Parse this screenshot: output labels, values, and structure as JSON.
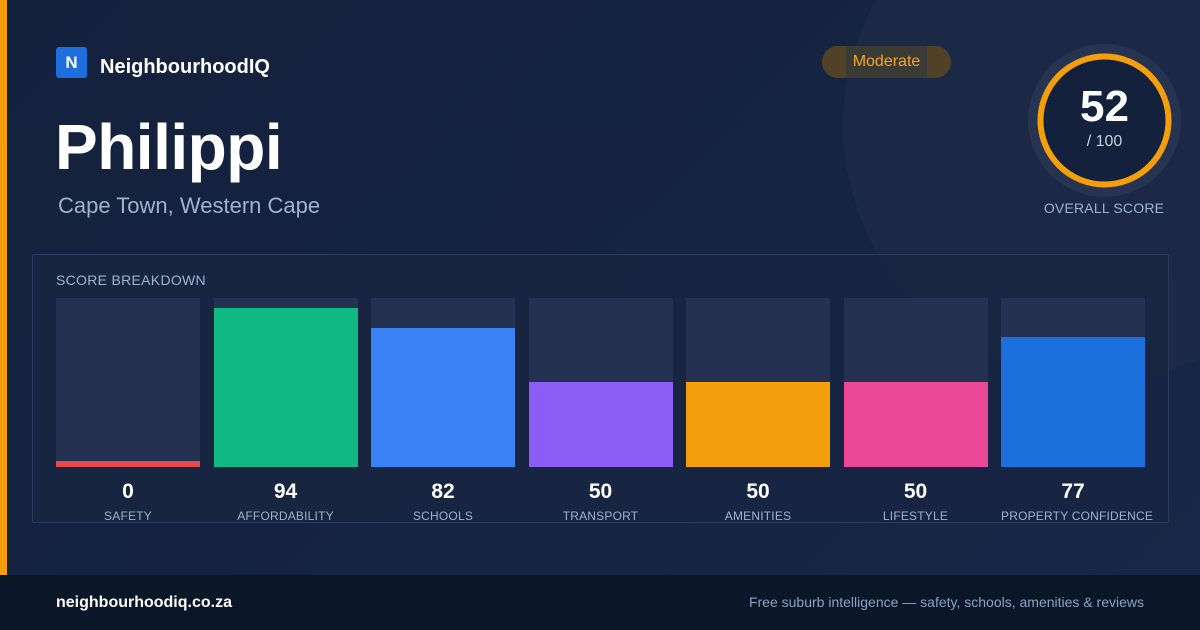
{
  "brand": {
    "logo_letter": "N",
    "name": "NeighbourhoodIQ"
  },
  "badge": {
    "label": "Moderate"
  },
  "suburb": {
    "name": "Philippi",
    "location": "Cape Town, Western Cape"
  },
  "overall": {
    "score": "52",
    "max": "/ 100",
    "fraction": 0.52,
    "caption": "OVERALL SCORE"
  },
  "breakdown": {
    "title": "SCORE BREAKDOWN",
    "items": [
      {
        "label": "SAFETY",
        "value": 0,
        "color": "#e5484d"
      },
      {
        "label": "AFFORDABILITY",
        "value": 94,
        "color": "#10b981"
      },
      {
        "label": "SCHOOLS",
        "value": 82,
        "color": "#3b82f6"
      },
      {
        "label": "TRANSPORT",
        "value": 50,
        "color": "#8b5cf6"
      },
      {
        "label": "AMENITIES",
        "value": 50,
        "color": "#f59e0b"
      },
      {
        "label": "LIFESTYLE",
        "value": 50,
        "color": "#ec4899"
      },
      {
        "label": "PROPERTY CONFIDENCE",
        "value": 77,
        "color": "#1d6fde"
      }
    ]
  },
  "colors": {
    "accent": "#f59e0b",
    "ring": "#f59e0b"
  },
  "footer": {
    "url": "neighbourhoodiq.co.za",
    "tagline": "Free suburb intelligence — safety, schools, amenities & reviews"
  }
}
